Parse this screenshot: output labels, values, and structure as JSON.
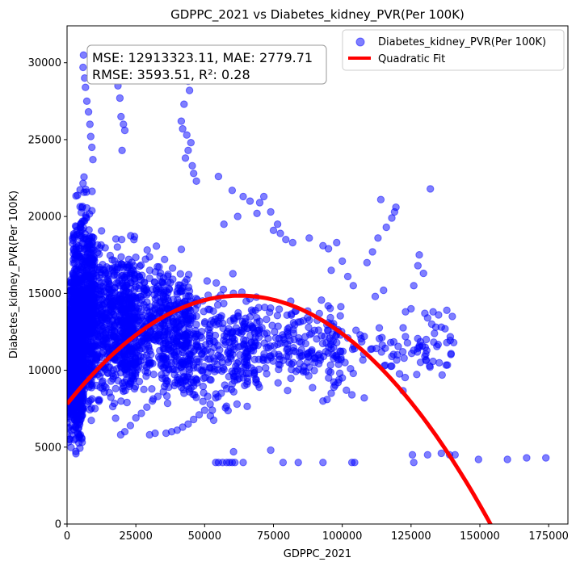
{
  "chart_data": {
    "type": "scatter",
    "title": "GDPPC_2021 vs Diabetes_kidney_PVR(Per 100K)",
    "xlabel": "GDPPC_2021",
    "ylabel": "Diabetes_kidney_PVR(Per 100K)",
    "xlim": [
      0,
      182000
    ],
    "ylim": [
      0,
      32400
    ],
    "xticks": [
      0,
      25000,
      50000,
      75000,
      100000,
      125000,
      150000,
      175000
    ],
    "yticks": [
      0,
      5000,
      10000,
      15000,
      20000,
      25000,
      30000
    ],
    "legend_position": "top-right",
    "series": [
      {
        "name": "Diabetes_kidney_PVR(Per 100K)",
        "kind": "scatter",
        "color": "#0000ff",
        "alpha": 0.5,
        "clusters": [
          {
            "x": [
              0,
              6000
            ],
            "y": [
              3600,
              17500
            ],
            "count": 900
          },
          {
            "x": [
              2000,
              10000
            ],
            "y": [
              5500,
              24000
            ],
            "count": 500
          },
          {
            "x": [
              6000,
              25000
            ],
            "y": [
              6000,
              20000
            ],
            "count": 700
          },
          {
            "x": [
              20000,
              45000
            ],
            "y": [
              7000,
              19000
            ],
            "count": 500
          },
          {
            "x": [
              35000,
              70000
            ],
            "y": [
              6000,
              17000
            ],
            "count": 350
          },
          {
            "x": [
              60000,
              100000
            ],
            "y": [
              8000,
              15500
            ],
            "count": 200
          },
          {
            "x": [
              80000,
              140000
            ],
            "y": [
              8500,
              14000
            ],
            "count": 90
          }
        ],
        "points": [
          [
            6000,
            30500
          ],
          [
            5800,
            29700
          ],
          [
            6400,
            29000
          ],
          [
            6700,
            28400
          ],
          [
            7200,
            27500
          ],
          [
            7800,
            26800
          ],
          [
            8300,
            26000
          ],
          [
            8600,
            25200
          ],
          [
            9000,
            24500
          ],
          [
            9400,
            23700
          ],
          [
            18500,
            28500
          ],
          [
            19200,
            27700
          ],
          [
            19600,
            26500
          ],
          [
            20500,
            26000
          ],
          [
            21000,
            25600
          ],
          [
            20000,
            24300
          ],
          [
            43000,
            29500
          ],
          [
            44000,
            28800
          ],
          [
            44500,
            28200
          ],
          [
            42500,
            27300
          ],
          [
            41500,
            26200
          ],
          [
            42000,
            25700
          ],
          [
            43500,
            25300
          ],
          [
            45000,
            24800
          ],
          [
            44000,
            24300
          ],
          [
            43000,
            23800
          ],
          [
            45500,
            23300
          ],
          [
            46000,
            22800
          ],
          [
            47000,
            22300
          ],
          [
            55000,
            22600
          ],
          [
            60000,
            21700
          ],
          [
            64000,
            21300
          ],
          [
            66500,
            21000
          ],
          [
            70000,
            20900
          ],
          [
            71500,
            21300
          ],
          [
            69000,
            20200
          ],
          [
            62000,
            20000
          ],
          [
            57000,
            19500
          ],
          [
            74000,
            20300
          ],
          [
            76500,
            19500
          ],
          [
            77500,
            18900
          ],
          [
            75000,
            19100
          ],
          [
            79500,
            18500
          ],
          [
            82000,
            18300
          ],
          [
            88000,
            18600
          ],
          [
            93000,
            18100
          ],
          [
            95000,
            17900
          ],
          [
            98000,
            18300
          ],
          [
            100000,
            17100
          ],
          [
            102000,
            16100
          ],
          [
            104000,
            15500
          ],
          [
            96000,
            16500
          ],
          [
            109000,
            17000
          ],
          [
            111000,
            17700
          ],
          [
            113000,
            18600
          ],
          [
            116000,
            19300
          ],
          [
            118000,
            19900
          ],
          [
            119000,
            20300
          ],
          [
            119500,
            20600
          ],
          [
            114000,
            21100
          ],
          [
            132000,
            21800
          ],
          [
            128000,
            17500
          ],
          [
            127500,
            16800
          ],
          [
            129500,
            16300
          ],
          [
            126000,
            15500
          ],
          [
            115000,
            15200
          ],
          [
            112000,
            14800
          ],
          [
            123000,
            13800
          ],
          [
            125000,
            14000
          ],
          [
            130000,
            13700
          ],
          [
            133000,
            13800
          ],
          [
            135000,
            13600
          ],
          [
            138000,
            13900
          ],
          [
            140000,
            13500
          ],
          [
            131000,
            13400
          ],
          [
            132500,
            13000
          ],
          [
            134000,
            12800
          ],
          [
            133500,
            12400
          ],
          [
            130500,
            12000
          ],
          [
            138000,
            11800
          ],
          [
            140500,
            11800
          ],
          [
            128000,
            11500
          ],
          [
            126000,
            11300
          ],
          [
            122000,
            11200
          ],
          [
            120000,
            11000
          ],
          [
            118000,
            10900
          ],
          [
            105000,
            12600
          ],
          [
            106500,
            12300
          ],
          [
            108000,
            12200
          ],
          [
            102000,
            12100
          ],
          [
            98000,
            11800
          ],
          [
            96000,
            11400
          ],
          [
            94000,
            11200
          ],
          [
            92000,
            10800
          ],
          [
            90000,
            10500
          ],
          [
            88000,
            10200
          ],
          [
            101000,
            10500
          ],
          [
            103000,
            10100
          ],
          [
            104000,
            9800
          ],
          [
            100000,
            9500
          ],
          [
            98500,
            9200
          ],
          [
            97000,
            8900
          ],
          [
            101500,
            8700
          ],
          [
            103500,
            8400
          ],
          [
            108000,
            8200
          ],
          [
            96000,
            8500
          ],
          [
            94500,
            8100
          ],
          [
            93000,
            8000
          ],
          [
            54000,
            4000
          ],
          [
            55000,
            4000
          ],
          [
            56500,
            4000
          ],
          [
            58000,
            4000
          ],
          [
            59000,
            4000
          ],
          [
            60000,
            4000
          ],
          [
            61000,
            4000
          ],
          [
            64000,
            4000
          ],
          [
            60500,
            4700
          ],
          [
            74000,
            4800
          ],
          [
            78500,
            4000
          ],
          [
            84000,
            4000
          ],
          [
            93000,
            4000
          ],
          [
            103500,
            4000
          ],
          [
            104500,
            4000
          ],
          [
            125500,
            4500
          ],
          [
            126000,
            4000
          ],
          [
            131000,
            4500
          ],
          [
            136000,
            4600
          ],
          [
            139000,
            4500
          ],
          [
            141000,
            4500
          ],
          [
            149500,
            4200
          ],
          [
            160000,
            4200
          ],
          [
            167000,
            4300
          ],
          [
            174000,
            4300
          ],
          [
            30000,
            5800
          ],
          [
            32000,
            5900
          ],
          [
            36000,
            5900
          ],
          [
            38000,
            6000
          ],
          [
            40000,
            6100
          ],
          [
            42000,
            6300
          ],
          [
            44000,
            6500
          ],
          [
            46000,
            6800
          ],
          [
            48000,
            7100
          ],
          [
            50000,
            7400
          ],
          [
            52000,
            7800
          ],
          [
            54000,
            8200
          ],
          [
            56000,
            8500
          ],
          [
            58000,
            8800
          ],
          [
            60000,
            9100
          ],
          [
            62000,
            9400
          ],
          [
            64000,
            9500
          ],
          [
            66000,
            9800
          ],
          [
            68000,
            10000
          ],
          [
            19500,
            5800
          ],
          [
            21000,
            6000
          ],
          [
            23000,
            6400
          ],
          [
            25000,
            6900
          ],
          [
            27000,
            7200
          ],
          [
            29000,
            7600
          ],
          [
            31000,
            8000
          ],
          [
            33000,
            8300
          ],
          [
            35000,
            8600
          ],
          [
            37000,
            8900
          ]
        ]
      },
      {
        "name": "Quadratic Fit",
        "kind": "line",
        "color": "#ff0000",
        "equation": "y = -0.00000179 * x^2 + 0.2247 * x + 7800"
      }
    ],
    "annotations": [
      {
        "text": "MSE: 12913323.11, MAE: 2779.71"
      },
      {
        "text": "RMSE: 3593.51, R²: 0.28"
      }
    ],
    "metrics": {
      "mse": 12913323.11,
      "mae": 2779.71,
      "rmse": 3593.51,
      "r2": 0.28
    }
  }
}
